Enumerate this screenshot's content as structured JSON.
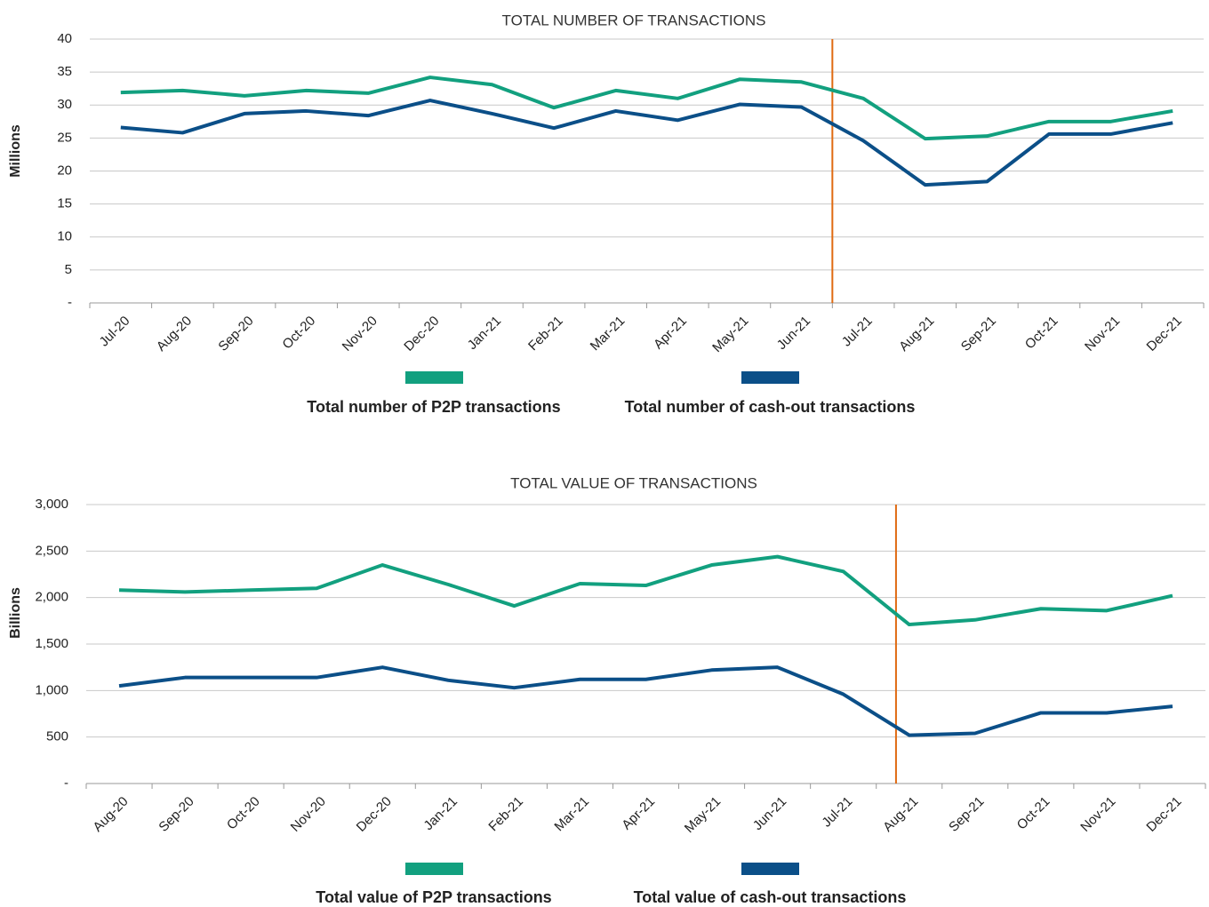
{
  "chart_data": [
    {
      "type": "line",
      "title": "TOTAL NUMBER OF TRANSACTIONS",
      "y_label": "Millions",
      "categories": [
        "Jul-20",
        "Aug-20",
        "Sep-20",
        "Oct-20",
        "Nov-20",
        "Dec-20",
        "Jan-21",
        "Feb-21",
        "Mar-21",
        "Apr-21",
        "May-21",
        "Jun-21",
        "Jul-21",
        "Aug-21",
        "Sep-21",
        "Oct-21",
        "Nov-21",
        "Dec-21"
      ],
      "series": [
        {
          "name": "Total number of P2P transactions",
          "color": "#12a07f",
          "values": [
            31.9,
            32.2,
            31.4,
            32.2,
            31.8,
            34.2,
            33.1,
            29.6,
            32.2,
            31.0,
            33.9,
            33.5,
            31.0,
            24.9,
            25.3,
            27.5,
            27.5,
            29.1
          ]
        },
        {
          "name": "Total number of cash-out transactions",
          "color": "#0b4f88",
          "values": [
            26.6,
            25.8,
            28.7,
            29.1,
            28.4,
            30.7,
            28.7,
            26.5,
            29.1,
            27.7,
            30.1,
            29.7,
            24.6,
            17.9,
            18.4,
            25.6,
            25.6,
            27.3
          ]
        }
      ],
      "ylim": [
        0,
        40
      ],
      "yticks": [
        {
          "value": 0,
          "label": "-"
        },
        5,
        10,
        15,
        20,
        25,
        30,
        35,
        40
      ],
      "grid": true
    },
    {
      "type": "line",
      "title": "TOTAL VALUE OF TRANSACTIONS",
      "y_label": "Billions",
      "categories": [
        "Aug-20",
        "Sep-20",
        "Oct-20",
        "Nov-20",
        "Dec-20",
        "Jan-21",
        "Feb-21",
        "Mar-21",
        "Apr-21",
        "May-21",
        "Jun-21",
        "Jul-21",
        "Aug-21",
        "Sep-21",
        "Oct-21",
        "Nov-21",
        "Dec-21"
      ],
      "series": [
        {
          "name": "Total value of P2P transactions",
          "color": "#12a07f",
          "values": [
            2080,
            2060,
            2080,
            2100,
            2350,
            2140,
            1910,
            2150,
            2130,
            2350,
            2440,
            2280,
            1710,
            1760,
            1880,
            1860,
            2020
          ]
        },
        {
          "name": "Total value of cash-out transactions",
          "color": "#0b4f88",
          "values": [
            1050,
            1140,
            1140,
            1140,
            1250,
            1110,
            1030,
            1120,
            1120,
            1220,
            1250,
            960,
            520,
            540,
            760,
            760,
            830
          ]
        }
      ],
      "ylim": [
        0,
        3000
      ],
      "yticks": [
        {
          "value": 0,
          "label": "-"
        },
        500,
        {
          "value": 1000,
          "label": "1,000"
        },
        {
          "value": 1500,
          "label": "1,500"
        },
        {
          "value": 2000,
          "label": "2,000"
        },
        {
          "value": 2500,
          "label": "2,500"
        },
        {
          "value": 3000,
          "label": "3,000"
        }
      ],
      "grid": true
    }
  ]
}
